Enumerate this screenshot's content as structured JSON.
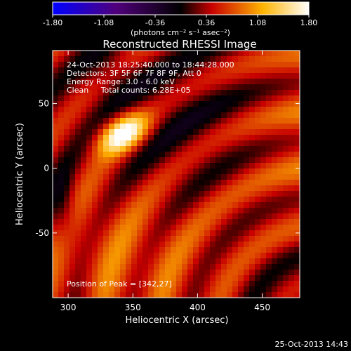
{
  "chart_data": {
    "type": "heatmap",
    "title": "Reconstructed RHESSI Image",
    "xlabel": "Heliocentric X (arcsec)",
    "ylabel": "Heliocentric Y (arcsec)",
    "xlim": [
      288,
      479
    ],
    "ylim": [
      -100,
      91
    ],
    "x_ticks": [
      300,
      350,
      400,
      450
    ],
    "y_ticks": [
      -50,
      0,
      50
    ],
    "colorbar": {
      "range": [
        -1.8,
        1.8
      ],
      "ticks": [
        -1.8,
        -1.08,
        -0.36,
        0.36,
        1.08,
        1.8
      ],
      "tick_labels": [
        "-1.80",
        "-1.08",
        "-0.36",
        "0.36",
        "1.08",
        "1.80"
      ],
      "units_label": "(photons cm⁻² s⁻¹ asec⁻²)",
      "colors": [
        "#0000ff",
        "#50007a",
        "#000000",
        "#c80000",
        "#ffb400",
        "#ffffff"
      ]
    },
    "annotations": [
      "24-Oct-2013 18:25:40.000 to 18:44:28.000",
      "Detectors: 3F 5F 6F 7F 8F 9F, Att 0",
      "Energy Range: 3.0 - 6.0 keV",
      "Clean     Total counts: 6.28E+05"
    ],
    "peak_label": "Position of Peak = [342,27]",
    "peak": {
      "x": 342,
      "y": 27,
      "value": 1.8
    },
    "grid": false
  },
  "footer": {
    "timestamp": "25-Oct-2013 14:43"
  }
}
